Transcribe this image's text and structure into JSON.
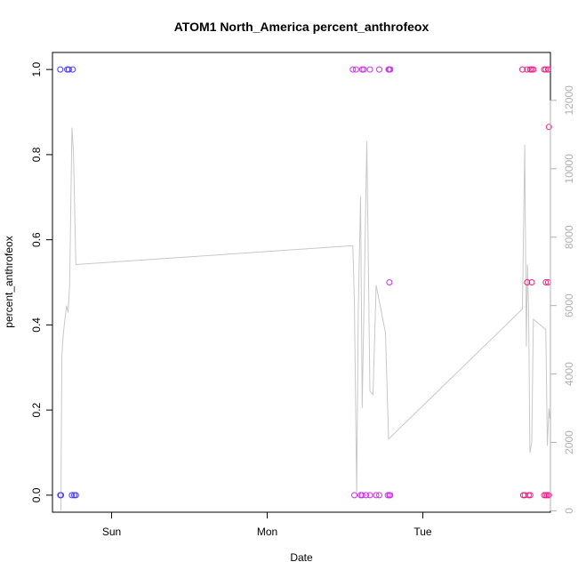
{
  "chart_data": {
    "type": "scatter",
    "title": "ATOM1 North_America percent_anthrofeox",
    "xlabel": "Date",
    "ylabel": "percent_anthrofeox",
    "xlim_days": [
      -0.38,
      2.82
    ],
    "ylim": [
      -0.04,
      1.04
    ],
    "y2lim": [
      -40,
      13400
    ],
    "x_ticks": [
      {
        "label": "Sun",
        "value": 0
      },
      {
        "label": "Mon",
        "value": 1
      },
      {
        "label": "Tue",
        "value": 2
      }
    ],
    "y_ticks": [
      {
        "label": "0.0",
        "value": 0.0
      },
      {
        "label": "0.2",
        "value": 0.2
      },
      {
        "label": "0.4",
        "value": 0.4
      },
      {
        "label": "0.6",
        "value": 0.6
      },
      {
        "label": "0.8",
        "value": 0.8
      },
      {
        "label": "1.0",
        "value": 1.0
      }
    ],
    "y2_ticks": [
      {
        "label": "0",
        "value": 0
      },
      {
        "label": "2000",
        "value": 2000
      },
      {
        "label": "4000",
        "value": 4000
      },
      {
        "label": "6000",
        "value": 6000
      },
      {
        "label": "8000",
        "value": 8000
      },
      {
        "label": "10000",
        "value": 10000
      },
      {
        "label": "12000",
        "value": 12000
      }
    ],
    "line_color": "#c8c8c8",
    "right_axis_color": "#b0b0b0",
    "line_series": [
      [
        -0.326,
        0
      ],
      [
        -0.32,
        4500
      ],
      [
        -0.31,
        5200
      ],
      [
        -0.29,
        6000
      ],
      [
        -0.28,
        5800
      ],
      [
        -0.27,
        6600
      ],
      [
        -0.265,
        8000
      ],
      [
        -0.255,
        11200
      ],
      [
        -0.245,
        10500
      ],
      [
        -0.23,
        7200
      ],
      [
        1.55,
        7750
      ],
      [
        1.56,
        6200
      ],
      [
        1.575,
        450
      ],
      [
        1.585,
        5800
      ],
      [
        1.6,
        9200
      ],
      [
        1.61,
        3000
      ],
      [
        1.64,
        10800
      ],
      [
        1.66,
        3500
      ],
      [
        1.68,
        3400
      ],
      [
        1.7,
        6600
      ],
      [
        1.76,
        5200
      ],
      [
        1.78,
        2100
      ],
      [
        2.64,
        5900
      ],
      [
        2.64,
        5900
      ],
      [
        2.655,
        10700
      ],
      [
        2.665,
        4800
      ],
      [
        2.672,
        7200
      ],
      [
        2.68,
        5800
      ],
      [
        2.688,
        1700
      ],
      [
        2.7,
        2000
      ],
      [
        2.71,
        5600
      ],
      [
        2.79,
        5300
      ],
      [
        2.8,
        1900
      ],
      [
        2.81,
        3000
      ],
      [
        2.815,
        2700
      ],
      [
        2.82,
        2950
      ]
    ],
    "points": [
      {
        "x": -0.33,
        "y": 1,
        "c": "#4a3df5"
      },
      {
        "x": -0.285,
        "y": 1,
        "c": "#4a3df5"
      },
      {
        "x": -0.275,
        "y": 1,
        "c": "#4a3df5"
      },
      {
        "x": -0.25,
        "y": 1,
        "c": "#4a3df5"
      },
      {
        "x": -0.33,
        "y": 0,
        "c": "#4a3df5"
      },
      {
        "x": -0.325,
        "y": 0,
        "c": "#4a3df5"
      },
      {
        "x": -0.255,
        "y": 0,
        "c": "#4a3df5"
      },
      {
        "x": -0.24,
        "y": 0,
        "c": "#4a3df5"
      },
      {
        "x": -0.23,
        "y": 0,
        "c": "#4a3df5"
      },
      {
        "x": 1.55,
        "y": 1,
        "c": "#cc33ee"
      },
      {
        "x": 1.57,
        "y": 1,
        "c": "#cc33ee"
      },
      {
        "x": 1.61,
        "y": 1,
        "c": "#cc33ee"
      },
      {
        "x": 1.62,
        "y": 1,
        "c": "#cc33ee"
      },
      {
        "x": 1.66,
        "y": 1,
        "c": "#cc33ee"
      },
      {
        "x": 1.72,
        "y": 1,
        "c": "#cc33ee"
      },
      {
        "x": 1.78,
        "y": 1,
        "c": "#cc33ee"
      },
      {
        "x": 1.785,
        "y": 1,
        "c": "#cc33ee"
      },
      {
        "x": 1.79,
        "y": 1,
        "c": "#cc33ee"
      },
      {
        "x": 1.785,
        "y": 0.5,
        "c": "#cc33ee"
      },
      {
        "x": 1.56,
        "y": 0,
        "c": "#cc33ee"
      },
      {
        "x": 1.6,
        "y": 0,
        "c": "#cc33ee"
      },
      {
        "x": 1.61,
        "y": 0,
        "c": "#cc33ee"
      },
      {
        "x": 1.635,
        "y": 0,
        "c": "#cc33ee"
      },
      {
        "x": 1.66,
        "y": 0,
        "c": "#cc33ee"
      },
      {
        "x": 1.7,
        "y": 0,
        "c": "#cc33ee"
      },
      {
        "x": 1.72,
        "y": 0,
        "c": "#cc33ee"
      },
      {
        "x": 1.775,
        "y": 0,
        "c": "#cc33ee"
      },
      {
        "x": 1.785,
        "y": 0,
        "c": "#cc33ee"
      },
      {
        "x": 1.79,
        "y": 0,
        "c": "#cc33ee"
      },
      {
        "x": 2.64,
        "y": 1,
        "c": "#ee2288"
      },
      {
        "x": 2.67,
        "y": 1,
        "c": "#ee2288"
      },
      {
        "x": 2.69,
        "y": 1,
        "c": "#ee2288"
      },
      {
        "x": 2.7,
        "y": 1,
        "c": "#ee2288"
      },
      {
        "x": 2.71,
        "y": 1,
        "c": "#ee2288"
      },
      {
        "x": 2.78,
        "y": 1,
        "c": "#ee2288"
      },
      {
        "x": 2.79,
        "y": 1,
        "c": "#ee2288"
      },
      {
        "x": 2.805,
        "y": 1,
        "c": "#ee2288"
      },
      {
        "x": 2.81,
        "y": 0.865,
        "c": "#ee2288"
      },
      {
        "x": 2.67,
        "y": 0.5,
        "c": "#ee2288"
      },
      {
        "x": 2.7,
        "y": 0.5,
        "c": "#ee2288"
      },
      {
        "x": 2.79,
        "y": 0.5,
        "c": "#ee2288"
      },
      {
        "x": 2.805,
        "y": 0.5,
        "c": "#ee2288"
      },
      {
        "x": 2.645,
        "y": 0,
        "c": "#ee2288"
      },
      {
        "x": 2.655,
        "y": 0,
        "c": "#ee2288"
      },
      {
        "x": 2.68,
        "y": 0,
        "c": "#ee2288"
      },
      {
        "x": 2.69,
        "y": 0,
        "c": "#ee2288"
      },
      {
        "x": 2.78,
        "y": 0,
        "c": "#ee2288"
      },
      {
        "x": 2.79,
        "y": 0,
        "c": "#ee2288"
      },
      {
        "x": 2.8,
        "y": 0,
        "c": "#ee2288"
      },
      {
        "x": 2.81,
        "y": 0,
        "c": "#ee2288"
      }
    ]
  }
}
